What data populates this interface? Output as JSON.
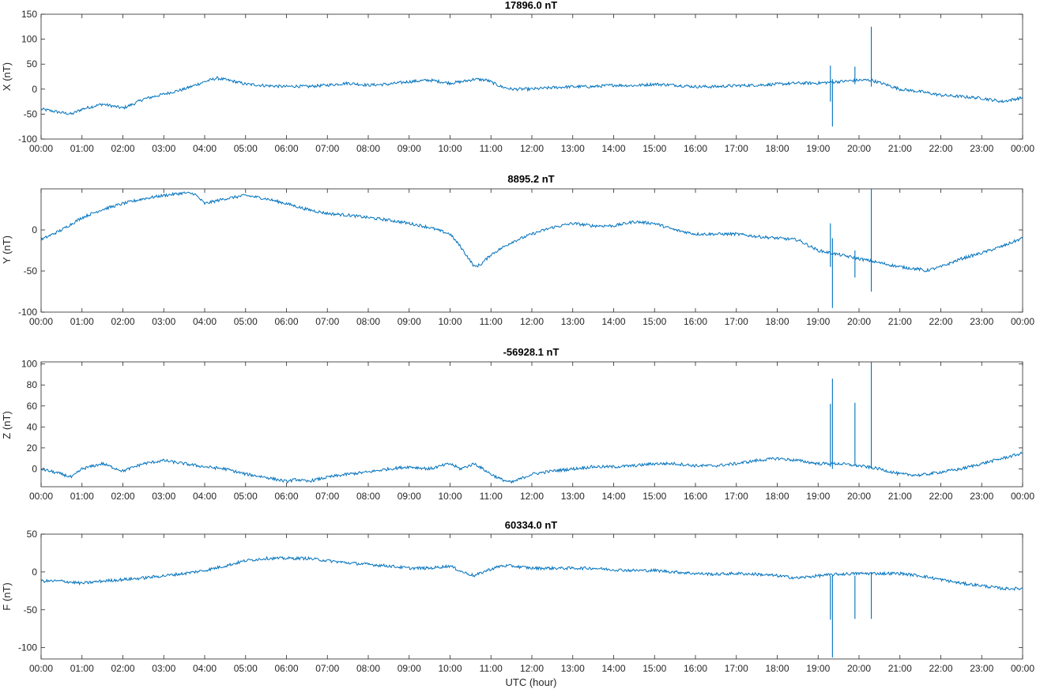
{
  "colors": {
    "line": "#0072bd",
    "axis": "#262626",
    "background": "#ffffff"
  },
  "xlabel": "UTC (hour)",
  "chart_data": [
    {
      "type": "line",
      "title": "17896.0 nT",
      "ylabel": "X (nT)",
      "ylim": [
        -100,
        150
      ],
      "yticks": [
        "-100",
        "-50",
        "0",
        "50",
        "100",
        "150"
      ],
      "xlim": [
        0,
        24
      ],
      "xticks": [
        "00:00",
        "01:00",
        "02:00",
        "03:00",
        "04:00",
        "05:00",
        "06:00",
        "07:00",
        "08:00",
        "09:00",
        "10:00",
        "11:00",
        "12:00",
        "13:00",
        "14:00",
        "15:00",
        "16:00",
        "17:00",
        "18:00",
        "19:00",
        "20:00",
        "21:00",
        "22:00",
        "23:00",
        "00:00"
      ],
      "x": [
        0,
        0.5,
        0.75,
        1,
        1.5,
        2,
        2.25,
        2.5,
        3,
        3.5,
        4,
        4.3,
        4.75,
        5,
        5.5,
        6,
        6.25,
        6.5,
        7,
        7.5,
        8,
        8.5,
        9,
        9.5,
        10,
        10.3,
        10.6,
        10.9,
        11.25,
        11.5,
        12,
        12.5,
        13,
        13.5,
        14,
        14.5,
        15,
        15.5,
        16,
        16.5,
        17,
        17.5,
        18,
        18.5,
        19,
        19.5,
        20,
        20.3,
        20.7,
        21,
        21.5,
        22,
        22.5,
        23,
        23.5,
        24
      ],
      "values": [
        -40,
        -47,
        -50,
        -40,
        -30,
        -38,
        -30,
        -20,
        -10,
        0,
        15,
        22,
        15,
        10,
        7,
        5,
        6,
        5,
        8,
        12,
        8,
        10,
        15,
        18,
        12,
        15,
        20,
        18,
        5,
        0,
        0,
        3,
        5,
        5,
        8,
        7,
        10,
        8,
        5,
        5,
        7,
        8,
        10,
        12,
        12,
        15,
        18,
        18,
        8,
        0,
        -5,
        -12,
        -15,
        -18,
        -25,
        -17
      ],
      "spikes": [
        {
          "x": 19.3,
          "min": -25,
          "max": 47
        },
        {
          "x": 19.35,
          "min": -75,
          "max": 20
        },
        {
          "x": 19.9,
          "min": 10,
          "max": 45
        },
        {
          "x": 20.3,
          "min": 5,
          "max": 125
        }
      ]
    },
    {
      "type": "line",
      "title": "8895.2 nT",
      "ylabel": "Y (nT)",
      "ylim": [
        -100,
        50
      ],
      "yticks": [
        "-100",
        "-50",
        "0"
      ],
      "xlim": [
        0,
        24
      ],
      "xticks": [
        "00:00",
        "01:00",
        "02:00",
        "03:00",
        "04:00",
        "05:00",
        "06:00",
        "07:00",
        "08:00",
        "09:00",
        "10:00",
        "11:00",
        "12:00",
        "13:00",
        "14:00",
        "15:00",
        "16:00",
        "17:00",
        "18:00",
        "19:00",
        "20:00",
        "21:00",
        "22:00",
        "23:00",
        "00:00"
      ],
      "x": [
        0,
        0.5,
        1,
        1.5,
        2,
        2.5,
        3,
        3.5,
        3.75,
        4,
        4.5,
        5,
        5.5,
        6,
        6.5,
        7,
        7.5,
        8,
        8.5,
        9,
        9.5,
        10,
        10.25,
        10.5,
        10.6,
        10.75,
        11,
        11.5,
        12,
        12.5,
        13,
        13.5,
        14,
        14.5,
        15,
        15.5,
        16,
        16.5,
        17,
        17.5,
        18,
        18.5,
        19,
        19.5,
        20,
        20.5,
        21,
        21.5,
        21.6,
        22,
        22.5,
        23,
        23.5,
        24
      ],
      "values": [
        -12,
        0,
        15,
        25,
        32,
        38,
        42,
        45,
        44,
        32,
        38,
        42,
        38,
        32,
        25,
        20,
        18,
        15,
        12,
        8,
        3,
        -5,
        -20,
        -38,
        -45,
        -42,
        -30,
        -15,
        -5,
        3,
        8,
        5,
        5,
        10,
        8,
        0,
        -5,
        -5,
        -5,
        -8,
        -10,
        -12,
        -25,
        -30,
        -35,
        -40,
        -45,
        -48,
        -50,
        -45,
        -35,
        -28,
        -20,
        -10
      ],
      "spikes": [
        {
          "x": 19.3,
          "min": -45,
          "max": 8
        },
        {
          "x": 19.35,
          "min": -95,
          "max": -10
        },
        {
          "x": 19.9,
          "min": -58,
          "max": -25
        },
        {
          "x": 20.3,
          "min": -75,
          "max": 50
        }
      ]
    },
    {
      "type": "line",
      "title": "-56928.1 nT",
      "ylabel": "Z (nT)",
      "ylim": [
        -17,
        102
      ],
      "yticks": [
        "0",
        "20",
        "40",
        "60",
        "80",
        "100"
      ],
      "xlim": [
        0,
        24
      ],
      "xticks": [
        "00:00",
        "01:00",
        "02:00",
        "03:00",
        "04:00",
        "05:00",
        "06:00",
        "07:00",
        "08:00",
        "09:00",
        "10:00",
        "11:00",
        "12:00",
        "13:00",
        "14:00",
        "15:00",
        "16:00",
        "17:00",
        "18:00",
        "19:00",
        "20:00",
        "21:00",
        "22:00",
        "23:00",
        "00:00"
      ],
      "x": [
        0,
        0.5,
        0.75,
        1,
        1.5,
        2,
        2.5,
        3,
        3.5,
        4,
        4.5,
        5,
        5.5,
        6,
        6.25,
        6.5,
        7,
        7.5,
        8,
        8.5,
        9,
        9.5,
        10,
        10.25,
        10.6,
        11,
        11.25,
        11.5,
        12,
        12.5,
        13,
        13.5,
        14,
        14.5,
        15,
        15.5,
        16,
        16.5,
        17,
        17.5,
        18,
        18.5,
        19,
        19.5,
        20,
        20.5,
        21,
        21.5,
        22,
        22.5,
        23,
        23.5,
        24
      ],
      "values": [
        0,
        -5,
        -8,
        0,
        5,
        -2,
        5,
        8,
        5,
        2,
        0,
        -5,
        -8,
        -12,
        -10,
        -12,
        -8,
        -5,
        -3,
        0,
        2,
        0,
        5,
        0,
        5,
        -5,
        -10,
        -13,
        -5,
        -2,
        0,
        2,
        2,
        3,
        5,
        5,
        3,
        3,
        5,
        8,
        10,
        8,
        5,
        5,
        3,
        0,
        -5,
        -6,
        -3,
        0,
        5,
        10,
        15
      ],
      "spikes": [
        {
          "x": 19.3,
          "min": 2,
          "max": 62
        },
        {
          "x": 19.35,
          "min": 0,
          "max": 86
        },
        {
          "x": 19.9,
          "min": 5,
          "max": 63
        },
        {
          "x": 20.3,
          "min": 0,
          "max": 102
        }
      ]
    },
    {
      "type": "line",
      "title": "60334.0 nT",
      "ylabel": "F (nT)",
      "ylim": [
        -115,
        50
      ],
      "yticks": [
        "-100",
        "-50",
        "0",
        "50"
      ],
      "xlim": [
        0,
        24
      ],
      "xticks": [
        "00:00",
        "01:00",
        "02:00",
        "03:00",
        "04:00",
        "05:00",
        "06:00",
        "07:00",
        "08:00",
        "09:00",
        "10:00",
        "11:00",
        "12:00",
        "13:00",
        "14:00",
        "15:00",
        "16:00",
        "17:00",
        "18:00",
        "19:00",
        "20:00",
        "21:00",
        "22:00",
        "23:00",
        "00:00"
      ],
      "x": [
        0,
        0.5,
        1,
        1.5,
        2,
        2.5,
        3,
        3.5,
        4,
        4.5,
        5,
        5.5,
        6,
        6.5,
        7,
        7.5,
        8,
        8.5,
        9,
        9.5,
        10,
        10.3,
        10.6,
        10.9,
        11.25,
        11.5,
        12,
        12.5,
        13,
        13.5,
        14,
        14.5,
        15,
        15.5,
        16,
        16.5,
        17,
        17.5,
        18,
        18.5,
        19,
        19.5,
        20,
        20.5,
        21,
        21.5,
        22,
        22.5,
        23,
        23.5,
        24
      ],
      "values": [
        -12,
        -12,
        -15,
        -12,
        -10,
        -8,
        -5,
        -2,
        2,
        8,
        15,
        18,
        18,
        18,
        15,
        12,
        10,
        8,
        5,
        5,
        8,
        0,
        -5,
        2,
        8,
        8,
        5,
        5,
        5,
        5,
        3,
        2,
        2,
        0,
        -2,
        -3,
        -2,
        -3,
        -5,
        -8,
        -5,
        -3,
        -2,
        -2,
        -2,
        -5,
        -10,
        -15,
        -18,
        -22,
        -22
      ],
      "spikes": [
        {
          "x": 19.3,
          "min": -63,
          "max": -5
        },
        {
          "x": 19.35,
          "min": -113,
          "max": -5
        },
        {
          "x": 19.9,
          "min": -62,
          "max": -5
        },
        {
          "x": 20.3,
          "min": -62,
          "max": 0
        }
      ]
    }
  ]
}
